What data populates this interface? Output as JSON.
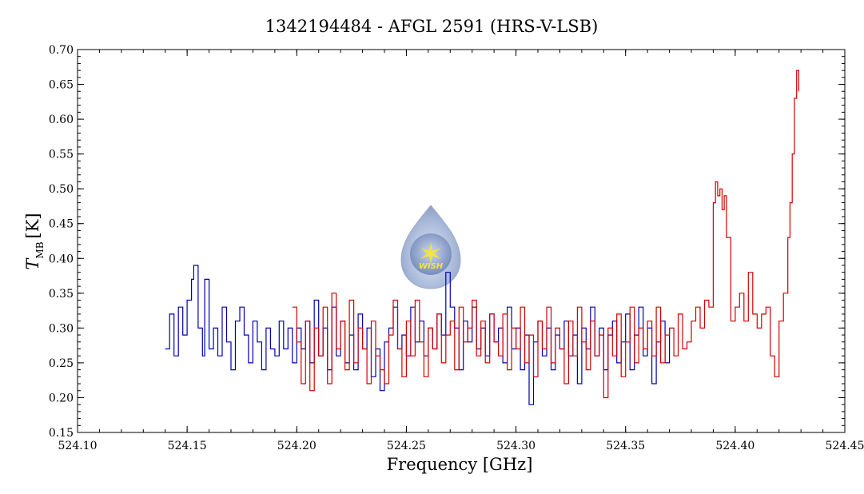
{
  "chart_data": {
    "type": "line",
    "title": "1342194484 - AFGL 2591 (HRS-V-LSB)",
    "xlabel": "Frequency [GHz]",
    "ylabel_main": "T",
    "ylabel_sub": "MB",
    "ylabel_unit": "[K]",
    "xlim": [
      524.1,
      524.45
    ],
    "ylim": [
      0.15,
      0.7
    ],
    "xticks": [
      "524.10",
      "524.15",
      "524.20",
      "524.25",
      "524.30",
      "524.35",
      "524.40",
      "524.45"
    ],
    "yticks": [
      "0.15",
      "0.20",
      "0.25",
      "0.30",
      "0.35",
      "0.40",
      "0.45",
      "0.50",
      "0.55",
      "0.60",
      "0.65",
      "0.70"
    ],
    "grid": false,
    "logo_text": "WISH",
    "series": [
      {
        "color": "#0000b4",
        "x": [
          524.14,
          524.142,
          524.144,
          524.146,
          524.148,
          524.15,
          524.152,
          524.153,
          524.155,
          524.157,
          524.158,
          524.16,
          524.162,
          524.164,
          524.166,
          524.168,
          524.17,
          524.172,
          524.174,
          524.176,
          524.178,
          524.18,
          524.182,
          524.184,
          524.186,
          524.188,
          524.19,
          524.192,
          524.194,
          524.196,
          524.198,
          524.2,
          524.202,
          524.204,
          524.206,
          524.208,
          524.21,
          524.212,
          524.214,
          524.216,
          524.218,
          524.22,
          524.222,
          524.224,
          524.226,
          524.228,
          524.23,
          524.232,
          524.234,
          524.236,
          524.238,
          524.24,
          524.242,
          524.244,
          524.246,
          524.248,
          524.25,
          524.252,
          524.254,
          524.256,
          524.258,
          524.26,
          524.262,
          524.264,
          524.266,
          524.268,
          524.27,
          524.272,
          524.274,
          524.276,
          524.278,
          524.28,
          524.282,
          524.284,
          524.286,
          524.288,
          524.29,
          524.292,
          524.294,
          524.296,
          524.298,
          524.3,
          524.302,
          524.304,
          524.306,
          524.308,
          524.31,
          524.312,
          524.314,
          524.316,
          524.318,
          524.32,
          524.322,
          524.324,
          524.326,
          524.328,
          524.33,
          524.332,
          524.334,
          524.336,
          524.338,
          524.34,
          524.342,
          524.344,
          524.346,
          524.348,
          524.35,
          524.352,
          524.354,
          524.356,
          524.358,
          524.36,
          524.362,
          524.364,
          524.366,
          524.368,
          524.37
        ],
        "y": [
          0.27,
          0.32,
          0.26,
          0.33,
          0.29,
          0.34,
          0.37,
          0.39,
          0.3,
          0.26,
          0.37,
          0.27,
          0.3,
          0.26,
          0.33,
          0.28,
          0.24,
          0.31,
          0.33,
          0.29,
          0.25,
          0.31,
          0.28,
          0.24,
          0.3,
          0.27,
          0.26,
          0.31,
          0.27,
          0.3,
          0.25,
          0.3,
          0.27,
          0.31,
          0.25,
          0.34,
          0.26,
          0.3,
          0.24,
          0.33,
          0.26,
          0.31,
          0.25,
          0.29,
          0.24,
          0.32,
          0.27,
          0.3,
          0.23,
          0.27,
          0.21,
          0.28,
          0.3,
          0.33,
          0.27,
          0.29,
          0.26,
          0.33,
          0.28,
          0.31,
          0.26,
          0.3,
          0.27,
          0.32,
          0.29,
          0.38,
          0.33,
          0.3,
          0.24,
          0.31,
          0.28,
          0.33,
          0.27,
          0.3,
          0.26,
          0.32,
          0.28,
          0.3,
          0.25,
          0.33,
          0.27,
          0.3,
          0.24,
          0.29,
          0.19,
          0.28,
          0.31,
          0.26,
          0.3,
          0.24,
          0.29,
          0.27,
          0.31,
          0.26,
          0.29,
          0.22,
          0.3,
          0.27,
          0.33,
          0.26,
          0.3,
          0.24,
          0.29,
          0.31,
          0.25,
          0.28,
          0.32,
          0.24,
          0.29,
          0.33,
          0.26,
          0.3,
          0.22,
          0.28,
          0.31,
          0.25,
          0.3
        ]
      },
      {
        "color": "#d40000",
        "x": [
          524.198,
          524.2,
          524.202,
          524.204,
          524.206,
          524.208,
          524.21,
          524.212,
          524.214,
          524.216,
          524.218,
          524.22,
          524.222,
          524.224,
          524.226,
          524.228,
          524.23,
          524.232,
          524.234,
          524.236,
          524.238,
          524.24,
          524.242,
          524.244,
          524.246,
          524.248,
          524.25,
          524.252,
          524.254,
          524.256,
          524.258,
          524.26,
          524.262,
          524.264,
          524.266,
          524.268,
          524.27,
          524.272,
          524.274,
          524.276,
          524.278,
          524.28,
          524.282,
          524.284,
          524.286,
          524.288,
          524.29,
          524.292,
          524.294,
          524.296,
          524.298,
          524.3,
          524.302,
          524.304,
          524.306,
          524.308,
          524.31,
          524.312,
          524.314,
          524.316,
          524.318,
          524.32,
          524.322,
          524.324,
          524.326,
          524.328,
          524.33,
          524.332,
          524.334,
          524.336,
          524.338,
          524.34,
          524.342,
          524.344,
          524.346,
          524.348,
          524.35,
          524.352,
          524.354,
          524.356,
          524.358,
          524.36,
          524.362,
          524.364,
          524.366,
          524.368,
          524.37,
          524.372,
          524.374,
          524.376,
          524.378,
          524.38,
          524.382,
          524.384,
          524.386,
          524.388,
          524.39,
          524.391,
          524.392,
          524.393,
          524.394,
          524.395,
          524.396,
          524.398,
          524.4,
          524.402,
          524.404,
          524.406,
          524.408,
          524.41,
          524.412,
          524.414,
          524.416,
          524.418,
          524.42,
          524.422,
          524.424,
          524.425,
          524.426,
          524.427,
          524.428,
          524.429
        ],
        "y": [
          0.33,
          0.28,
          0.22,
          0.31,
          0.21,
          0.3,
          0.26,
          0.33,
          0.22,
          0.35,
          0.27,
          0.31,
          0.24,
          0.34,
          0.25,
          0.3,
          0.27,
          0.22,
          0.31,
          0.26,
          0.24,
          0.22,
          0.29,
          0.34,
          0.27,
          0.23,
          0.31,
          0.26,
          0.34,
          0.28,
          0.23,
          0.3,
          0.27,
          0.32,
          0.25,
          0.29,
          0.31,
          0.24,
          0.33,
          0.28,
          0.3,
          0.34,
          0.26,
          0.31,
          0.25,
          0.32,
          0.28,
          0.26,
          0.32,
          0.24,
          0.3,
          0.27,
          0.33,
          0.25,
          0.29,
          0.23,
          0.31,
          0.27,
          0.33,
          0.25,
          0.3,
          0.27,
          0.22,
          0.31,
          0.26,
          0.33,
          0.28,
          0.24,
          0.31,
          0.26,
          0.29,
          0.2,
          0.3,
          0.26,
          0.32,
          0.23,
          0.28,
          0.33,
          0.25,
          0.3,
          0.27,
          0.31,
          0.26,
          0.33,
          0.25,
          0.29,
          0.3,
          0.26,
          0.32,
          0.27,
          0.28,
          0.31,
          0.33,
          0.3,
          0.34,
          0.33,
          0.48,
          0.51,
          0.49,
          0.5,
          0.47,
          0.49,
          0.43,
          0.31,
          0.33,
          0.35,
          0.31,
          0.38,
          0.32,
          0.3,
          0.32,
          0.33,
          0.26,
          0.23,
          0.31,
          0.35,
          0.43,
          0.48,
          0.55,
          0.63,
          0.67,
          0.64
        ]
      }
    ]
  }
}
